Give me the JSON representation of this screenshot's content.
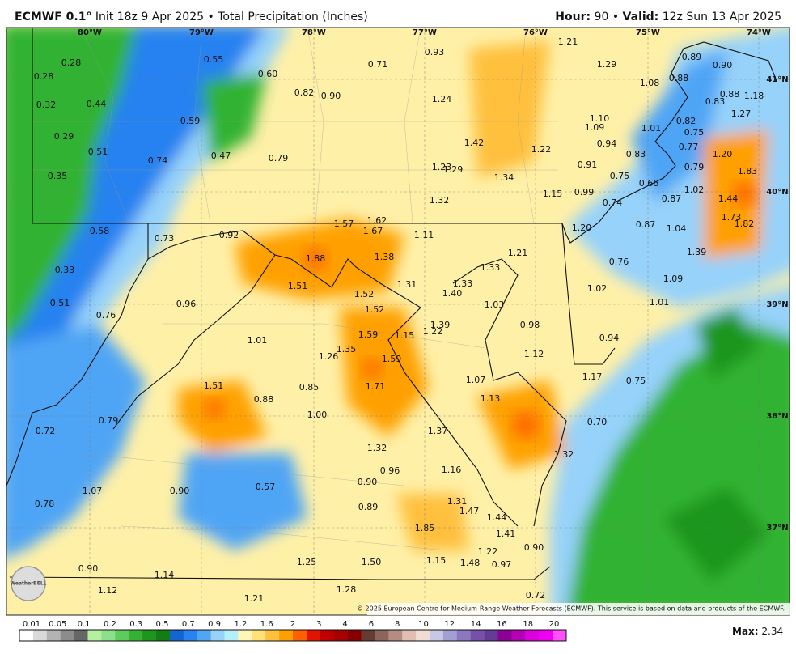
{
  "header": {
    "model": "ECMWF 0.1°",
    "init": "Init 18z 9 Apr 2025",
    "separator": "•",
    "product": "Total Precipitation (Inches)",
    "hour_label": "Hour:",
    "hour": "90",
    "valid_label": "Valid:",
    "valid": "12z Sun 13 Apr 2025"
  },
  "map": {
    "longitudes": [
      "80°W",
      "79°W",
      "78°W",
      "77°W",
      "76°W",
      "75°W",
      "74°W"
    ],
    "latitudes": [
      "41°N",
      "40°N",
      "39°N",
      "38°N",
      "37°N"
    ],
    "values": [
      "0.28",
      "0.28",
      "0.32",
      "0.44",
      "0.29",
      "0.51",
      "0.35",
      "0.74",
      "0.55",
      "0.60",
      "0.59",
      "0.47",
      "0.79",
      "0.82",
      "0.90",
      "0.71",
      "0.93",
      "1.21",
      "1.29",
      "0.89",
      "0.90",
      "1.08",
      "0.88",
      "0.88",
      "0.83",
      "1.18",
      "1.24",
      "1.10",
      "1.09",
      "1.01",
      "0.82",
      "0.75",
      "0.77",
      "1.27",
      "1.42",
      "1.22",
      "0.94",
      "0.83",
      "1.20",
      "0.91",
      "0.75",
      "0.79",
      "1.83",
      "1.23",
      "1.29",
      "1.34",
      "0.66",
      "1.02",
      "1.44",
      "1.15",
      "0.99",
      "0.74",
      "0.87",
      "1.32",
      "1.73",
      "1.82",
      "0.87",
      "1.04",
      "1.20",
      "0.58",
      "0.73",
      "0.92",
      "1.57",
      "1.62",
      "1.67",
      "1.11",
      "1.39",
      "1.09",
      "0.76",
      "1.88",
      "1.38",
      "1.33",
      "1.21",
      "0.33",
      "1.51",
      "1.31",
      "1.52",
      "1.33",
      "1.40",
      "1.02",
      "1.01",
      "0.51",
      "0.96",
      "0.76",
      "1.52",
      "1.03",
      "0.98",
      "1.39",
      "1.59",
      "1.15",
      "1.22",
      "0.94",
      "1.01",
      "1.35",
      "1.26",
      "1.59",
      "1.12",
      "1.17",
      "0.75",
      "1.07",
      "1.51",
      "0.85",
      "1.71",
      "0.88",
      "1.13",
      "1.00",
      "0.79",
      "0.70",
      "0.72",
      "1.37",
      "1.32",
      "1.32",
      "0.96",
      "1.16",
      "0.90",
      "1.07",
      "0.90",
      "0.57",
      "0.89",
      "1.31",
      "1.47",
      "1.44",
      "0.78",
      "1.85",
      "1.41",
      "0.90",
      "1.22",
      "1.25",
      "1.50",
      "1.15",
      "1.48",
      "0.97",
      "0.90",
      "1.14",
      "0.72",
      "1.12",
      "1.28",
      "1.21"
    ],
    "copyright": "© 2025 European Centre for Medium-Range Weather Forecasts (ECMWF). This service is based on data and products of the ECMWF.",
    "logo": "WeatherBELL"
  },
  "legend": {
    "labels": [
      "0.01",
      "0.05",
      "0.1",
      "0.2",
      "0.3",
      "0.5",
      "0.7",
      "0.9",
      "1.2",
      "1.6",
      "2",
      "3",
      "4",
      "6",
      "8",
      "10",
      "12",
      "14",
      "16",
      "18",
      "20"
    ],
    "colors": [
      "#ffffff",
      "#d9d9d9",
      "#b3b3b3",
      "#8c8c8c",
      "#666666",
      "#b3f0a0",
      "#8ce08c",
      "#5ccc5c",
      "#33b233",
      "#1e961e",
      "#137d13",
      "#1464d2",
      "#2882f0",
      "#50a5f5",
      "#96d2fa",
      "#b4f0fa",
      "#fff5b4",
      "#ffe178",
      "#ffc03c",
      "#ffa000",
      "#ff6000",
      "#e11400",
      "#c00000",
      "#a50000",
      "#870000",
      "#643c32",
      "#8c645a",
      "#b48c82",
      "#e1beb4",
      "#f0dcd2",
      "#c8c8e6",
      "#a0a0d2",
      "#8c78be",
      "#7850aa",
      "#643c96",
      "#8c0096",
      "#b400b4",
      "#dc00dc",
      "#f000f0",
      "#ff50ff"
    ],
    "max_label": "Max:",
    "max": "2.34"
  }
}
